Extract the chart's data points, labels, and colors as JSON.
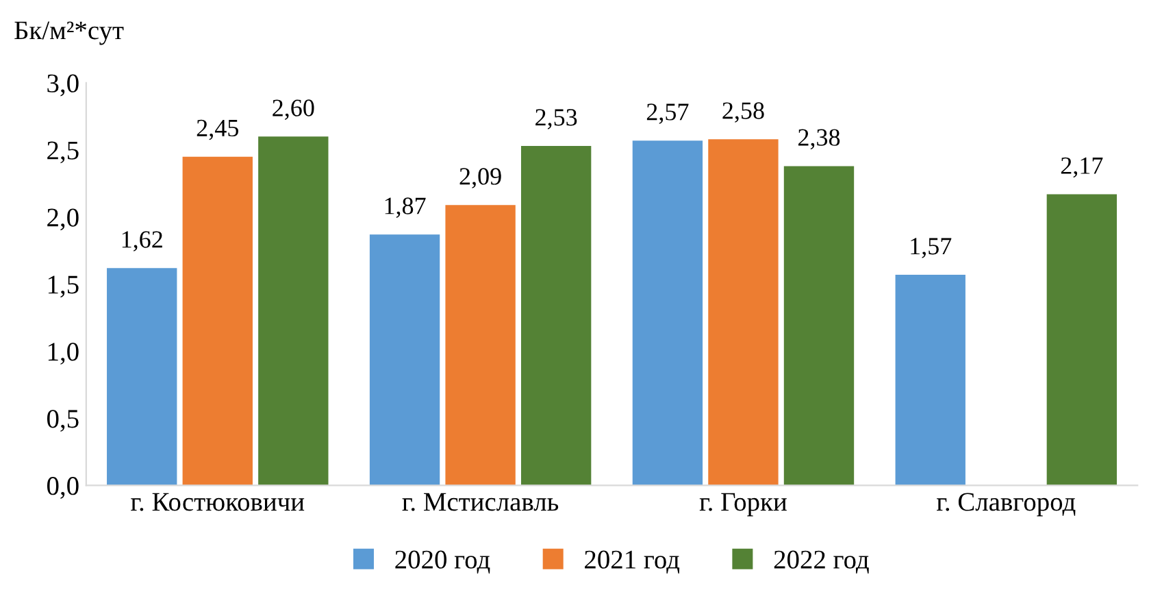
{
  "chart_data": {
    "type": "bar",
    "ylabel": "Бк/м²*сут",
    "categories": [
      "г. Костюковичи",
      "г. Мстиславль",
      "г. Горки",
      "г. Славгород"
    ],
    "series": [
      {
        "name": "2020 год",
        "color": "#5b9bd5",
        "values": [
          1.62,
          1.87,
          2.57,
          1.57
        ],
        "value_labels": [
          "1,62",
          "1,87",
          "2,57",
          "1,57"
        ]
      },
      {
        "name": "2021 год",
        "color": "#ed7d31",
        "values": [
          2.45,
          2.09,
          2.58,
          null
        ],
        "value_labels": [
          "2,45",
          "2,09",
          "2,58",
          null
        ]
      },
      {
        "name": "2022 год",
        "color": "#548235",
        "values": [
          2.6,
          2.53,
          2.38,
          2.17
        ],
        "value_labels": [
          "2,60",
          "2,53",
          "2,38",
          "2,17"
        ]
      }
    ],
    "ylim": [
      0,
      3
    ],
    "yticks": [
      {
        "value": 0,
        "label": "0,0"
      },
      {
        "value": 0.5,
        "label": "0,5"
      },
      {
        "value": 1,
        "label": "1,0"
      },
      {
        "value": 1.5,
        "label": "1,5"
      },
      {
        "value": 2,
        "label": "2,0"
      },
      {
        "value": 2.5,
        "label": "2,5"
      },
      {
        "value": 3,
        "label": "3,0"
      }
    ],
    "grid": false,
    "legend": "bottom"
  }
}
